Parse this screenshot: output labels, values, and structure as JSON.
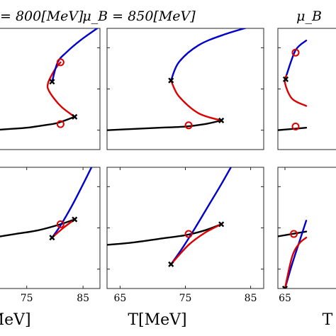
{
  "figure": {
    "column_titles": [
      "= 800[MeV]",
      "μ_B = 850[MeV]",
      "μ_B"
    ],
    "x_labels": [
      "T[MeV]",
      "T[MeV]",
      "T"
    ]
  },
  "colors": {
    "stable_branch": "#000000",
    "metastable_branch": "#0000cc",
    "unstable_branch": "#dd0000",
    "marker": "#dd0000",
    "spinodal_marker": "#000000"
  },
  "chart_data": [
    {
      "type": "line",
      "panel": "top-left",
      "title": "= 800[MeV]",
      "xlim": [
        69,
        88
      ],
      "ylim": [
        0,
        1
      ],
      "grid": false,
      "series": [
        {
          "color": "black",
          "x": [
            69,
            72,
            75,
            78,
            80.5,
            83.5
          ],
          "y": [
            0.16,
            0.17,
            0.18,
            0.2,
            0.22,
            0.27
          ]
        },
        {
          "color": "red",
          "x": [
            83.5,
            81,
            79,
            78.8,
            80,
            81
          ],
          "y": [
            0.27,
            0.36,
            0.48,
            0.55,
            0.66,
            0.72
          ]
        },
        {
          "color": "blue",
          "x": [
            79.5,
            80.5,
            82,
            84.5,
            87.5
          ],
          "y": [
            0.56,
            0.72,
            0.8,
            0.9,
            1.0
          ]
        }
      ],
      "points": [
        {
          "kind": "circle",
          "x": 81,
          "y": 0.21
        },
        {
          "kind": "circle",
          "x": 81,
          "y": 0.72
        },
        {
          "kind": "cross",
          "x": 79.5,
          "y": 0.56
        },
        {
          "kind": "cross",
          "x": 83.5,
          "y": 0.27
        }
      ]
    },
    {
      "type": "line",
      "panel": "top-middle",
      "title": "μ_B = 850[MeV]",
      "xlim": [
        63,
        87
      ],
      "ylim": [
        0,
        1
      ],
      "grid": false,
      "series": [
        {
          "color": "black",
          "x": [
            63,
            67,
            71,
            75,
            78,
            80.5
          ],
          "y": [
            0.16,
            0.17,
            0.18,
            0.19,
            0.21,
            0.24
          ]
        },
        {
          "color": "red",
          "x": [
            80.5,
            77,
            74,
            72.8
          ],
          "y": [
            0.24,
            0.3,
            0.44,
            0.57
          ]
        },
        {
          "color": "blue",
          "x": [
            72.8,
            74,
            77,
            81,
            86
          ],
          "y": [
            0.57,
            0.72,
            0.86,
            0.95,
            1.03
          ]
        }
      ],
      "points": [
        {
          "kind": "circle",
          "x": 75.5,
          "y": 0.2
        },
        {
          "kind": "cross",
          "x": 72.8,
          "y": 0.57
        },
        {
          "kind": "cross",
          "x": 80.5,
          "y": 0.24
        }
      ]
    },
    {
      "type": "line",
      "panel": "top-right",
      "title": "μ_B",
      "xlim": [
        63,
        87
      ],
      "ylim": [
        0,
        1
      ],
      "grid": false,
      "series": [
        {
          "color": "black",
          "x": [
            63,
            67,
            71
          ],
          "y": [
            0.16,
            0.17,
            0.18
          ]
        },
        {
          "color": "red",
          "x": [
            71,
            67,
            65,
            65.5
          ],
          "y": [
            0.36,
            0.42,
            0.55,
            0.62
          ]
        },
        {
          "color": "blue",
          "x": [
            65.5,
            68,
            71
          ],
          "y": [
            0.62,
            0.82,
            0.9
          ]
        }
      ],
      "points": [
        {
          "kind": "circle",
          "x": 68,
          "y": 0.19
        },
        {
          "kind": "circle",
          "x": 68,
          "y": 0.8
        },
        {
          "kind": "cross",
          "x": 65.2,
          "y": 0.58
        }
      ]
    },
    {
      "type": "line",
      "panel": "bottom-left",
      "xlim": [
        69,
        88
      ],
      "ylim": [
        0,
        1
      ],
      "xticks": [
        75,
        85
      ],
      "grid": false,
      "series": [
        {
          "color": "black",
          "x": [
            69,
            73,
            77,
            81,
            83.5
          ],
          "y": [
            0.42,
            0.45,
            0.48,
            0.53,
            0.57
          ]
        },
        {
          "color": "blue",
          "x": [
            79.5,
            81,
            83,
            85,
            86.5
          ],
          "y": [
            0.42,
            0.52,
            0.68,
            0.86,
            1.0
          ]
        },
        {
          "color": "red",
          "x": [
            79.5,
            81.5,
            83.5
          ],
          "y": [
            0.42,
            0.5,
            0.57
          ]
        }
      ],
      "points": [
        {
          "kind": "circle",
          "x": 81,
          "y": 0.53
        },
        {
          "kind": "cross",
          "x": 79.5,
          "y": 0.42
        },
        {
          "kind": "cross",
          "x": 83.5,
          "y": 0.57
        }
      ]
    },
    {
      "type": "line",
      "panel": "bottom-middle",
      "xlim": [
        63,
        87
      ],
      "ylim": [
        0,
        1
      ],
      "xticks": [
        65,
        75,
        85
      ],
      "grid": false,
      "series": [
        {
          "color": "black",
          "x": [
            63,
            67,
            71,
            75,
            78,
            80.5
          ],
          "y": [
            0.36,
            0.38,
            0.41,
            0.44,
            0.48,
            0.53
          ]
        },
        {
          "color": "blue",
          "x": [
            72.8,
            74.5,
            76.5,
            78.5,
            80.5,
            82.5
          ],
          "y": [
            0.2,
            0.33,
            0.5,
            0.68,
            0.86,
            1.05
          ]
        },
        {
          "color": "red",
          "x": [
            72.8,
            75.5,
            78,
            80.5
          ],
          "y": [
            0.2,
            0.36,
            0.46,
            0.53
          ]
        }
      ],
      "points": [
        {
          "kind": "circle",
          "x": 75.5,
          "y": 0.45
        },
        {
          "kind": "cross",
          "x": 72.8,
          "y": 0.2
        },
        {
          "kind": "cross",
          "x": 80.5,
          "y": 0.53
        }
      ]
    },
    {
      "type": "line",
      "panel": "bottom-right",
      "xlim": [
        63,
        87
      ],
      "ylim": [
        0,
        1
      ],
      "xticks": [
        65
      ],
      "grid": false,
      "series": [
        {
          "color": "black",
          "x": [
            63,
            67,
            71
          ],
          "y": [
            0.43,
            0.45,
            0.47
          ]
        },
        {
          "color": "blue",
          "x": [
            65,
            67,
            69,
            71
          ],
          "y": [
            0.0,
            0.2,
            0.38,
            0.56
          ]
        },
        {
          "color": "red",
          "x": [
            65,
            67,
            69,
            71
          ],
          "y": [
            0.0,
            0.26,
            0.37,
            0.42
          ]
        }
      ],
      "points": [
        {
          "kind": "circle",
          "x": 67.5,
          "y": 0.45
        },
        {
          "kind": "cross",
          "x": 65,
          "y": 0.0
        }
      ]
    }
  ]
}
